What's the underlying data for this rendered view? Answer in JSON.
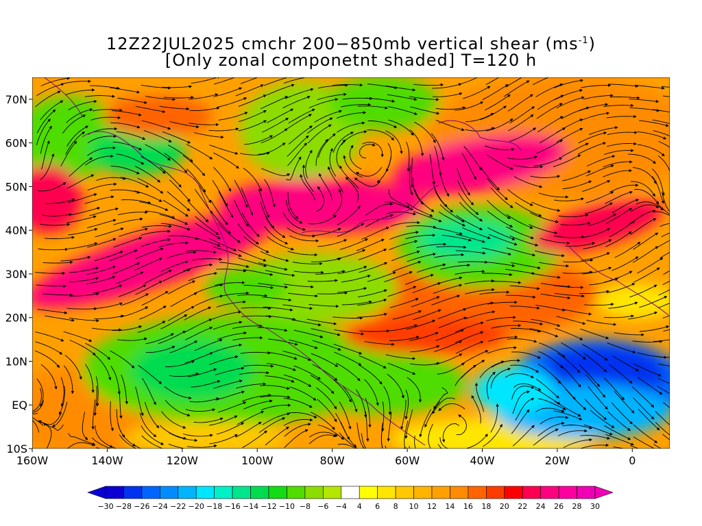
{
  "title": {
    "line1_prefix": "12Z22JUL2025 cmchr 200−850mb vertical shear (ms",
    "line1_sup": "-1",
    "line1_suffix": ")",
    "line2": "[Only zonal componetnt shaded] T=120 h"
  },
  "map": {
    "lon_range": [
      -160,
      10
    ],
    "lat_range": [
      -10,
      75
    ],
    "lat_ticks": [
      "10S",
      "EQ",
      "10N",
      "20N",
      "30N",
      "40N",
      "50N",
      "60N",
      "70N"
    ],
    "lon_ticks": [
      "160W",
      "140W",
      "120W",
      "100W",
      "80W",
      "60W",
      "40W",
      "20W",
      "0"
    ],
    "streamline_color": "#000000",
    "coastline_color": "#800080"
  },
  "colorbar": {
    "labels": [
      "−30",
      "−28",
      "−26",
      "−24",
      "−22",
      "−20",
      "−18",
      "−16",
      "−14",
      "−12",
      "−10",
      "−8",
      "−6",
      "−4",
      "4",
      "6",
      "8",
      "10",
      "12",
      "14",
      "16",
      "18",
      "20",
      "22",
      "24",
      "26",
      "28",
      "30"
    ],
    "colors": [
      "#0a00d2",
      "#0032f0",
      "#0064ff",
      "#008cff",
      "#00b4ff",
      "#00e6ff",
      "#00f0c8",
      "#00e68c",
      "#00dc50",
      "#14dc14",
      "#50dc00",
      "#8cdc00",
      "#b4e600",
      "#ffffff",
      "#ffff00",
      "#ffe600",
      "#ffc800",
      "#ffb400",
      "#ffa000",
      "#ff8c00",
      "#ff6400",
      "#ff3c00",
      "#ff0000",
      "#ff0050",
      "#ff0080",
      "#ff00a0",
      "#f000b4"
    ]
  }
}
